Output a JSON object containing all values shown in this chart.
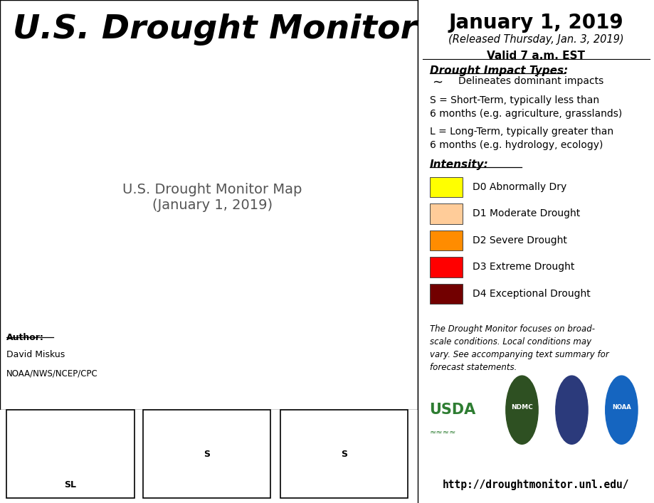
{
  "title": "U.S. Drought Monitor",
  "date_line1": "January 1, 2019",
  "date_line2": "(Released Thursday, Jan. 3, 2019)",
  "date_line3": "Valid 7 a.m. EST",
  "author_label": "Author:",
  "author_name": "David Miskus",
  "author_org": "NOAA/NWS/NCEP/CPC",
  "url": "http://droughtmonitor.unl.edu/",
  "disclaimer": "The Drought Monitor focuses on broad-\nscale conditions. Local conditions may\nvary. See accompanying text summary for\nforecast statements.",
  "impact_title": "Drought Impact Types:",
  "impact_line1": "Delineates dominant impacts",
  "impact_s": "S = Short-Term, typically less than\n6 months (e.g. agriculture, grasslands)",
  "impact_l": "L = Long-Term, typically greater than\n6 months (e.g. hydrology, ecology)",
  "intensity_title": "Intensity:",
  "legend_items": [
    {
      "color": "#FFFF00",
      "label": "D0 Abnormally Dry"
    },
    {
      "color": "#FFCC99",
      "label": "D1 Moderate Drought"
    },
    {
      "color": "#FF8C00",
      "label": "D2 Severe Drought"
    },
    {
      "color": "#FF0000",
      "label": "D3 Extreme Drought"
    },
    {
      "color": "#720000",
      "label": "D4 Exceptional Drought"
    }
  ],
  "bg_color": "#FFFFFF",
  "water_color": "#B8D4E8",
  "land_color": "#FFFFFF",
  "state_edge_color": "#000000",
  "drought_colors": {
    "D0": "#FFFF00",
    "D1": "#FFCC99",
    "D2": "#FF8C00",
    "D3": "#FF0000",
    "D4": "#720000"
  },
  "map_xlim": [
    -128,
    -65
  ],
  "map_ylim": [
    23,
    50
  ]
}
